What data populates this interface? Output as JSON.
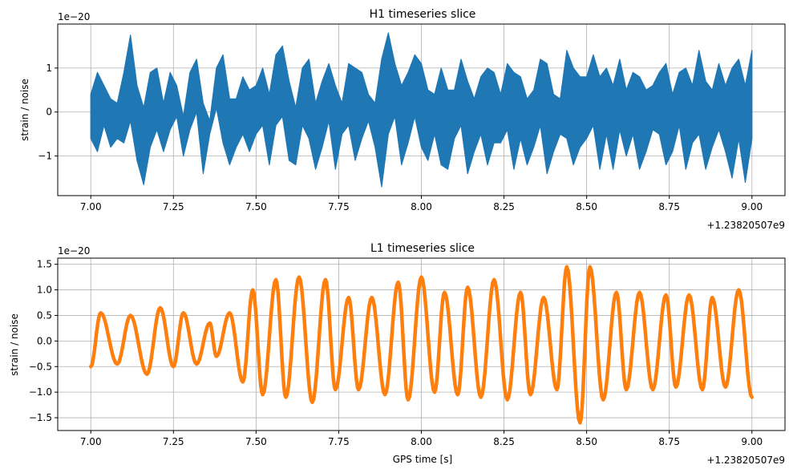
{
  "chart_data": [
    {
      "type": "line",
      "title": "H1 timeseries slice",
      "xlabel": "",
      "ylabel": "strain / noise",
      "x_offset_label": "+1.23820507e9",
      "y_scale_label": "1e−20",
      "xlim": [
        6.9,
        9.1
      ],
      "ylim": [
        -1.9,
        2.0
      ],
      "y_scale_factor": 1e-20,
      "x_ticks": [
        7.0,
        7.25,
        7.5,
        7.75,
        8.0,
        8.25,
        8.5,
        8.75,
        9.0
      ],
      "x_tick_labels": [
        "7.00",
        "7.25",
        "7.50",
        "7.75",
        "8.00",
        "8.25",
        "8.50",
        "8.75",
        "9.00"
      ],
      "y_ticks": [
        -1,
        0,
        1
      ],
      "y_tick_labels": [
        "−1",
        "0",
        "1"
      ],
      "grid": true,
      "color": "#1f77b4",
      "series": [
        {
          "x": [
            7.0,
            7.02,
            7.04,
            7.06,
            7.08,
            7.1,
            7.12,
            7.14,
            7.16,
            7.18,
            7.2,
            7.22,
            7.24,
            7.26,
            7.28,
            7.3,
            7.32,
            7.34,
            7.36,
            7.38,
            7.4,
            7.42,
            7.44,
            7.46,
            7.48,
            7.5,
            7.52,
            7.54,
            7.56,
            7.58,
            7.6,
            7.62,
            7.64,
            7.66,
            7.68,
            7.7,
            7.72,
            7.74,
            7.76,
            7.78,
            7.8,
            7.82,
            7.84,
            7.86,
            7.88,
            7.9,
            7.92,
            7.94,
            7.96,
            7.98,
            8.0,
            8.02,
            8.04,
            8.06,
            8.08,
            8.1,
            8.12,
            8.14,
            8.16,
            8.18,
            8.2,
            8.22,
            8.24,
            8.26,
            8.28,
            8.3,
            8.32,
            8.34,
            8.36,
            8.38,
            8.4,
            8.42,
            8.44,
            8.46,
            8.48,
            8.5,
            8.52,
            8.54,
            8.56,
            8.58,
            8.6,
            8.62,
            8.64,
            8.66,
            8.68,
            8.7,
            8.72,
            8.74,
            8.76,
            8.78,
            8.8,
            8.82,
            8.84,
            8.86,
            8.88,
            8.9,
            8.92,
            8.94,
            8.96,
            8.98,
            9.0
          ],
          "y_upper": [
            0.4,
            0.9,
            0.6,
            0.3,
            0.2,
            0.9,
            1.75,
            0.6,
            0.1,
            0.9,
            1.0,
            0.2,
            0.9,
            0.6,
            -0.1,
            0.9,
            1.2,
            0.2,
            -0.2,
            1.0,
            1.3,
            0.3,
            0.3,
            0.8,
            0.5,
            0.6,
            1.0,
            0.4,
            1.3,
            1.5,
            0.7,
            0.1,
            1.0,
            1.2,
            0.2,
            0.7,
            1.1,
            0.6,
            0.2,
            1.1,
            1.0,
            0.9,
            0.4,
            0.2,
            1.2,
            1.8,
            1.1,
            0.6,
            0.9,
            1.3,
            1.1,
            0.5,
            0.4,
            1.0,
            0.5,
            0.5,
            1.2,
            0.7,
            0.3,
            0.8,
            1.0,
            0.9,
            0.4,
            1.1,
            0.9,
            0.8,
            0.3,
            0.5,
            1.2,
            1.1,
            0.4,
            0.3,
            1.4,
            1.0,
            0.8,
            0.8,
            1.3,
            0.8,
            1.0,
            0.6,
            1.2,
            0.5,
            0.9,
            0.8,
            0.5,
            0.6,
            0.9,
            1.1,
            0.4,
            0.9,
            1.0,
            0.6,
            1.4,
            0.7,
            0.5,
            1.1,
            0.6,
            1.0,
            1.2,
            0.6,
            1.4
          ],
          "y_lower": [
            -0.6,
            -0.9,
            -0.3,
            -0.8,
            -0.6,
            -0.7,
            -0.2,
            -1.1,
            -1.65,
            -0.8,
            -0.4,
            -0.9,
            -0.4,
            -0.1,
            -1.0,
            -0.4,
            0.0,
            -1.4,
            -0.5,
            0.1,
            -0.7,
            -1.2,
            -0.8,
            -0.5,
            -0.9,
            -0.5,
            -0.3,
            -1.2,
            -0.3,
            -0.1,
            -1.1,
            -1.2,
            -0.3,
            -0.6,
            -1.3,
            -0.8,
            -0.2,
            -1.3,
            -0.5,
            -0.3,
            -1.1,
            -0.6,
            -0.2,
            -0.8,
            -1.7,
            -0.5,
            -0.1,
            -1.2,
            -0.7,
            -0.1,
            -0.8,
            -1.1,
            -0.5,
            -1.2,
            -1.3,
            -0.6,
            -0.3,
            -1.4,
            -0.9,
            -0.5,
            -1.2,
            -0.7,
            -0.7,
            -0.4,
            -1.3,
            -0.6,
            -1.2,
            -0.8,
            -0.3,
            -1.4,
            -0.9,
            -0.5,
            -0.6,
            -1.2,
            -0.8,
            -0.6,
            -0.3,
            -1.3,
            -0.5,
            -1.3,
            -0.4,
            -1.0,
            -0.5,
            -1.3,
            -0.9,
            -0.4,
            -0.5,
            -1.2,
            -0.9,
            -0.3,
            -1.3,
            -0.7,
            -0.5,
            -1.3,
            -0.8,
            -0.4,
            -0.9,
            -1.5,
            -0.6,
            -1.6,
            -0.6
          ]
        }
      ]
    },
    {
      "type": "line",
      "title": "L1 timeseries slice",
      "xlabel": "GPS time [s]",
      "ylabel": "strain / noise",
      "x_offset_label": "+1.23820507e9",
      "y_scale_label": "1e−20",
      "xlim": [
        6.9,
        9.1
      ],
      "ylim": [
        -1.75,
        1.62
      ],
      "y_scale_factor": 1e-20,
      "x_ticks": [
        7.0,
        7.25,
        7.5,
        7.75,
        8.0,
        8.25,
        8.5,
        8.75,
        9.0
      ],
      "x_tick_labels": [
        "7.00",
        "7.25",
        "7.50",
        "7.75",
        "8.00",
        "8.25",
        "8.50",
        "8.75",
        "9.00"
      ],
      "y_ticks": [
        -1.5,
        -1.0,
        -0.5,
        0.0,
        0.5,
        1.0,
        1.5
      ],
      "y_tick_labels": [
        "−1.5",
        "−1.0",
        "−0.5",
        "0.0",
        "0.5",
        "1.0",
        "1.5"
      ],
      "grid": true,
      "color": "#ff7f0e",
      "series": [
        {
          "extrema_x": [
            7.0,
            7.03,
            7.08,
            7.12,
            7.17,
            7.21,
            7.25,
            7.28,
            7.32,
            7.36,
            7.38,
            7.42,
            7.46,
            7.49,
            7.52,
            7.56,
            7.59,
            7.63,
            7.67,
            7.71,
            7.74,
            7.78,
            7.81,
            7.85,
            7.89,
            7.93,
            7.96,
            8.0,
            8.04,
            8.07,
            8.11,
            8.14,
            8.18,
            8.22,
            8.26,
            8.3,
            8.33,
            8.37,
            8.41,
            8.44,
            8.48,
            8.51,
            8.55,
            8.59,
            8.62,
            8.66,
            8.7,
            8.74,
            8.77,
            8.81,
            8.85,
            8.88,
            8.92,
            8.96,
            9.0
          ],
          "extrema_y": [
            -0.5,
            0.55,
            -0.45,
            0.5,
            -0.65,
            0.65,
            -0.5,
            0.55,
            -0.45,
            0.35,
            -0.3,
            0.55,
            -0.8,
            1.0,
            -1.05,
            1.2,
            -1.1,
            1.25,
            -1.2,
            1.2,
            -0.95,
            0.85,
            -0.95,
            0.85,
            -1.05,
            1.15,
            -1.15,
            1.25,
            -1.0,
            0.95,
            -1.05,
            1.05,
            -1.1,
            1.2,
            -1.15,
            0.95,
            -1.05,
            0.85,
            -0.95,
            1.45,
            -1.6,
            1.45,
            -1.15,
            0.95,
            -0.95,
            0.95,
            -0.95,
            0.9,
            -0.9,
            0.9,
            -0.95,
            0.85,
            -0.9,
            1.0,
            -1.1
          ]
        }
      ]
    }
  ]
}
